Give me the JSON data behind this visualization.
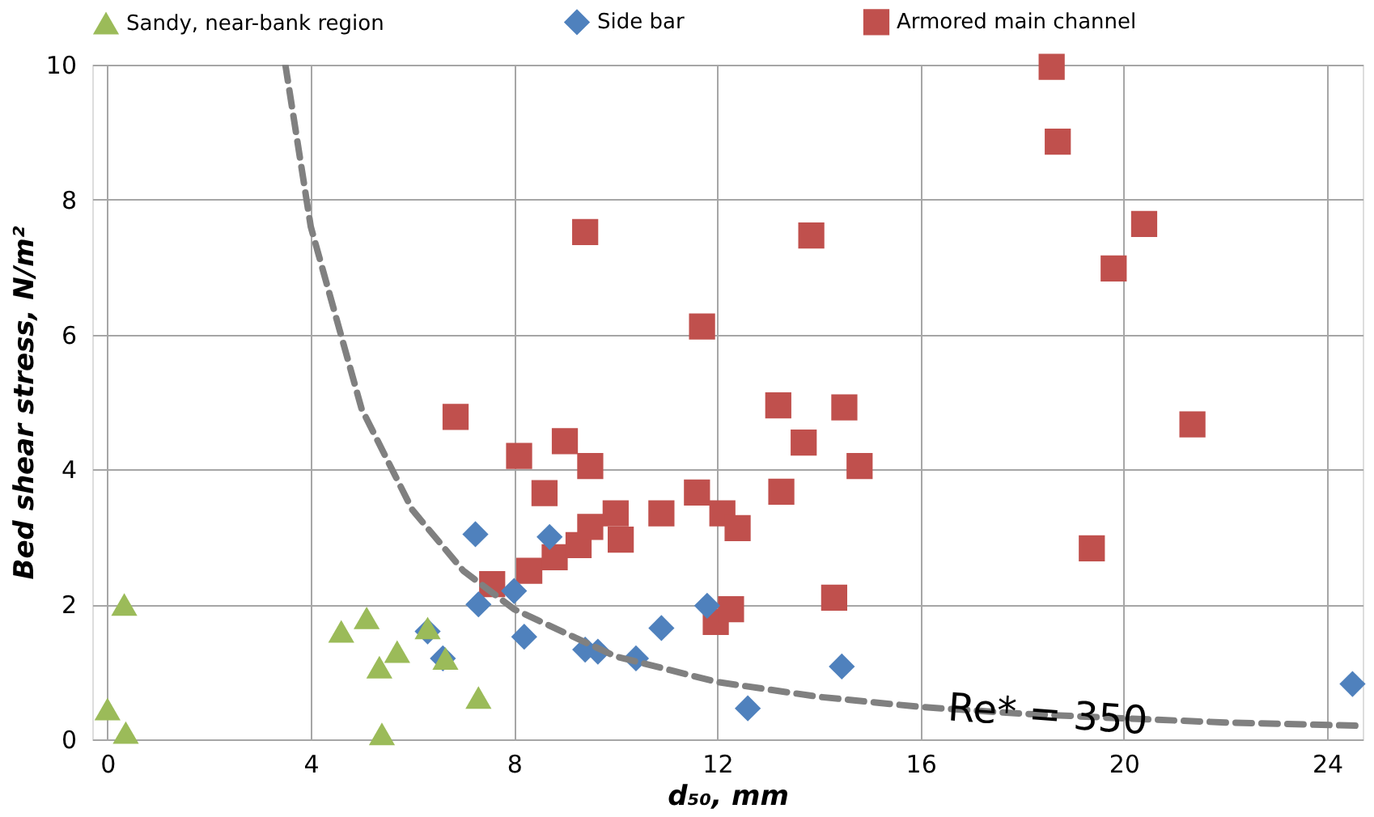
{
  "chart_data": {
    "type": "scatter",
    "xlabel": "d₅₀, mm",
    "ylabel": "Bed shear stress, N/m²",
    "xlim": [
      -0.3,
      24.7
    ],
    "ylim": [
      0,
      10
    ],
    "xticks": [
      0,
      4,
      8,
      12,
      16,
      20,
      24
    ],
    "yticks": [
      0,
      2,
      4,
      6,
      8,
      10
    ],
    "grid": true,
    "legend": "top",
    "series": [
      {
        "name": "Sandy, near-bank region",
        "color": "#9bbb59",
        "marker": "triangle",
        "x": [
          0,
          0.33,
          0.36,
          4.6,
          5.1,
          5.35,
          5.7,
          5.4,
          6.3,
          6.65,
          7.3
        ],
        "values": [
          0.45,
          2.0,
          0.1,
          1.6,
          1.8,
          1.07,
          1.3,
          0.08,
          1.65,
          1.2,
          0.62
        ]
      },
      {
        "name": "Side bar",
        "color": "#4f81bd",
        "marker": "diamond",
        "x": [
          6.3,
          6.6,
          7.24,
          7.3,
          8.0,
          8.2,
          8.7,
          9.4,
          9.65,
          10.4,
          10.9,
          11.8,
          12.6,
          14.45,
          24.5
        ],
        "values": [
          1.6,
          1.2,
          3.04,
          2.0,
          2.2,
          1.52,
          3.0,
          1.33,
          1.3,
          1.2,
          1.65,
          1.98,
          0.46,
          1.08,
          0.82
        ]
      },
      {
        "name": "Armored main channel",
        "color": "#c0504d",
        "marker": "square",
        "x": [
          6.85,
          7.57,
          8.1,
          8.3,
          8.6,
          8.8,
          9.0,
          9.27,
          9.4,
          9.5,
          9.5,
          10.0,
          10.1,
          10.9,
          11.6,
          11.7,
          11.97,
          12.1,
          12.27,
          12.4,
          13.2,
          13.26,
          13.7,
          13.85,
          14.3,
          14.5,
          14.8,
          18.58,
          18.7,
          19.37,
          19.8,
          20.4,
          21.35
        ],
        "values": [
          4.78,
          2.3,
          4.2,
          2.5,
          3.65,
          2.7,
          4.42,
          2.88,
          7.52,
          4.05,
          3.15,
          3.35,
          2.96,
          3.35,
          3.66,
          6.12,
          1.74,
          3.35,
          1.93,
          3.13,
          4.95,
          3.67,
          4.4,
          7.47,
          2.1,
          4.92,
          4.05,
          9.97,
          8.86,
          2.83,
          6.98,
          7.64,
          4.67
        ]
      },
      {
        "type": "line",
        "color": "#808080",
        "line_style": "dashed",
        "x": [
          3.5,
          4,
          5,
          6,
          7,
          8,
          10,
          12,
          14,
          16,
          18,
          20,
          22,
          24.7
        ],
        "values": [
          10,
          7.6,
          4.9,
          3.4,
          2.5,
          1.93,
          1.23,
          0.85,
          0.63,
          0.48,
          0.38,
          0.31,
          0.25,
          0.2
        ]
      }
    ],
    "annotations": [
      {
        "text": "Re* = 350",
        "x": 18.5,
        "y": 0.35
      }
    ]
  }
}
